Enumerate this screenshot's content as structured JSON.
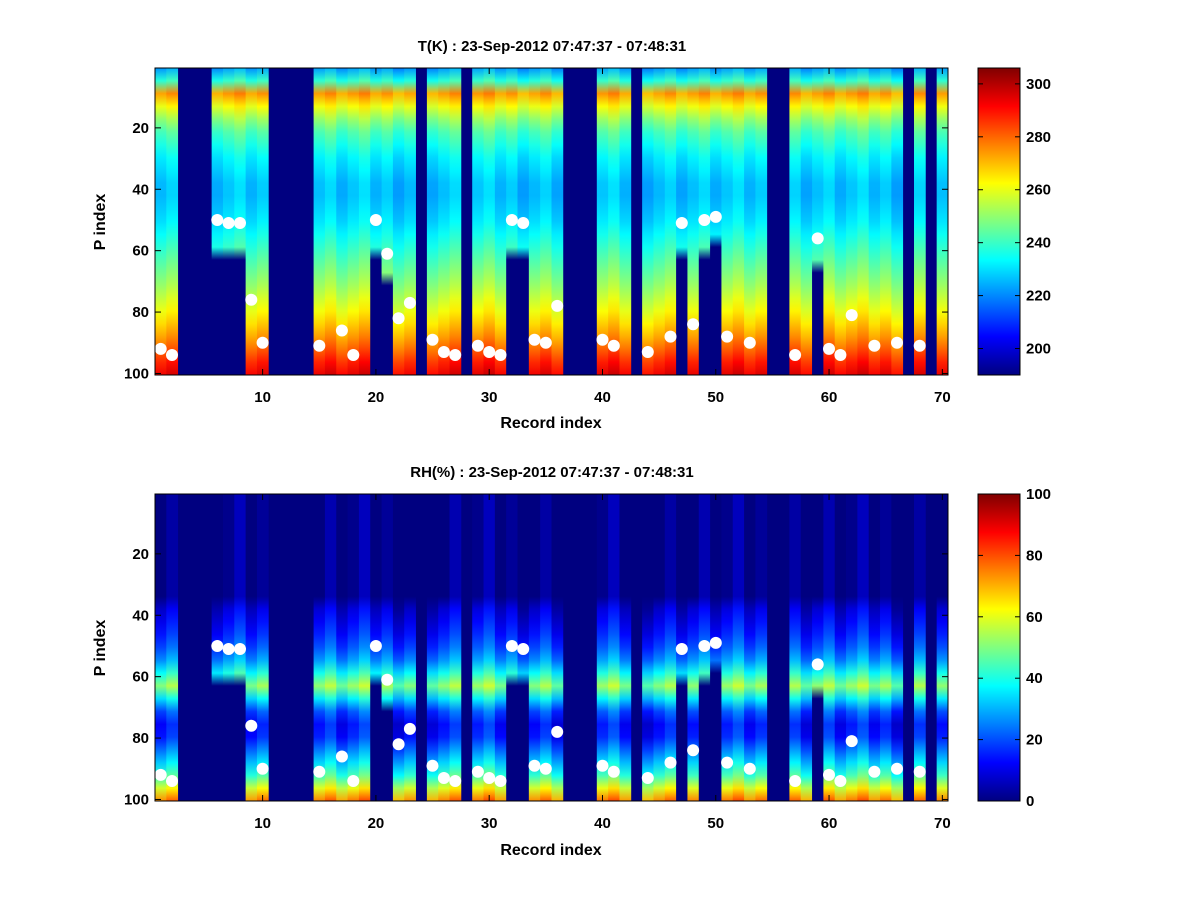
{
  "chart_data": [
    {
      "type": "heatmap",
      "title": "T(K) : 23-Sep-2012 07:47:37 - 07:48:31",
      "xlabel": "Record index",
      "ylabel": "P index",
      "xlim": [
        0.5,
        70.5
      ],
      "ylim": [
        0.5,
        100.5
      ],
      "y_reversed": true,
      "xticks": [
        10,
        20,
        30,
        40,
        50,
        60,
        70
      ],
      "yticks": [
        20,
        40,
        60,
        80,
        100
      ],
      "colormap": "jet",
      "clim": [
        190,
        306
      ],
      "colorbar_ticks": [
        200,
        220,
        240,
        260,
        280,
        300
      ],
      "fill_value": 190,
      "base_profile": [
        [
          1,
          222
        ],
        [
          6,
          242
        ],
        [
          8,
          270
        ],
        [
          10,
          276
        ],
        [
          13,
          262
        ],
        [
          20,
          244
        ],
        [
          30,
          232
        ],
        [
          40,
          225
        ],
        [
          50,
          230
        ],
        [
          60,
          240
        ],
        [
          70,
          250
        ],
        [
          80,
          262
        ],
        [
          90,
          277
        ],
        [
          96,
          288
        ],
        [
          100,
          294
        ]
      ],
      "empty_records": [
        3,
        4,
        5,
        11,
        12,
        13,
        14,
        24,
        28,
        37,
        38,
        39,
        43,
        55,
        56,
        67,
        69
      ],
      "markers": [
        {
          "record": 1,
          "p": 92
        },
        {
          "record": 2,
          "p": 94
        },
        {
          "record": 6,
          "p": 50
        },
        {
          "record": 7,
          "p": 51
        },
        {
          "record": 8,
          "p": 51
        },
        {
          "record": 9,
          "p": 76
        },
        {
          "record": 10,
          "p": 90
        },
        {
          "record": 15,
          "p": 91
        },
        {
          "record": 17,
          "p": 86
        },
        {
          "record": 18,
          "p": 94
        },
        {
          "record": 20,
          "p": 50
        },
        {
          "record": 21,
          "p": 61
        },
        {
          "record": 22,
          "p": 82
        },
        {
          "record": 23,
          "p": 77
        },
        {
          "record": 25,
          "p": 89
        },
        {
          "record": 26,
          "p": 93
        },
        {
          "record": 27,
          "p": 94
        },
        {
          "record": 29,
          "p": 91
        },
        {
          "record": 30,
          "p": 93
        },
        {
          "record": 31,
          "p": 94
        },
        {
          "record": 32,
          "p": 50
        },
        {
          "record": 33,
          "p": 51
        },
        {
          "record": 34,
          "p": 89
        },
        {
          "record": 35,
          "p": 90
        },
        {
          "record": 36,
          "p": 78
        },
        {
          "record": 40,
          "p": 89
        },
        {
          "record": 41,
          "p": 91
        },
        {
          "record": 44,
          "p": 93
        },
        {
          "record": 46,
          "p": 88
        },
        {
          "record": 47,
          "p": 51
        },
        {
          "record": 48,
          "p": 84
        },
        {
          "record": 49,
          "p": 50
        },
        {
          "record": 50,
          "p": 49
        },
        {
          "record": 51,
          "p": 88
        },
        {
          "record": 53,
          "p": 90
        },
        {
          "record": 57,
          "p": 94
        },
        {
          "record": 59,
          "p": 56
        },
        {
          "record": 60,
          "p": 92
        },
        {
          "record": 61,
          "p": 94
        },
        {
          "record": 62,
          "p": 81
        },
        {
          "record": 64,
          "p": 91
        },
        {
          "record": 66,
          "p": 90
        },
        {
          "record": 68,
          "p": 91
        }
      ]
    },
    {
      "type": "heatmap",
      "title": "RH(%) : 23-Sep-2012 07:47:37 - 07:48:31",
      "xlabel": "Record index",
      "ylabel": "P index",
      "xlim": [
        0.5,
        70.5
      ],
      "ylim": [
        0.5,
        100.5
      ],
      "y_reversed": true,
      "xticks": [
        10,
        20,
        30,
        40,
        50,
        60,
        70
      ],
      "yticks": [
        20,
        40,
        60,
        80,
        100
      ],
      "colormap": "jet",
      "clim": [
        0,
        100
      ],
      "colorbar_ticks": [
        0,
        20,
        40,
        60,
        80,
        100
      ],
      "fill_value": 0,
      "base_profile": [
        [
          1,
          0
        ],
        [
          34,
          0
        ],
        [
          38,
          8
        ],
        [
          46,
          15
        ],
        [
          52,
          22
        ],
        [
          57,
          32
        ],
        [
          61,
          48
        ],
        [
          63,
          52
        ],
        [
          66,
          40
        ],
        [
          70,
          22
        ],
        [
          76,
          12
        ],
        [
          80,
          16
        ],
        [
          86,
          30
        ],
        [
          90,
          38
        ],
        [
          94,
          50
        ],
        [
          97,
          65
        ],
        [
          100,
          75
        ]
      ],
      "empty_records": [
        3,
        4,
        5,
        11,
        12,
        13,
        14,
        24,
        28,
        37,
        38,
        39,
        43,
        55,
        56,
        67,
        69
      ],
      "markers": [
        {
          "record": 1,
          "p": 92
        },
        {
          "record": 2,
          "p": 94
        },
        {
          "record": 6,
          "p": 50
        },
        {
          "record": 7,
          "p": 51
        },
        {
          "record": 8,
          "p": 51
        },
        {
          "record": 9,
          "p": 76
        },
        {
          "record": 10,
          "p": 90
        },
        {
          "record": 15,
          "p": 91
        },
        {
          "record": 17,
          "p": 86
        },
        {
          "record": 18,
          "p": 94
        },
        {
          "record": 20,
          "p": 50
        },
        {
          "record": 21,
          "p": 61
        },
        {
          "record": 22,
          "p": 82
        },
        {
          "record": 23,
          "p": 77
        },
        {
          "record": 25,
          "p": 89
        },
        {
          "record": 26,
          "p": 93
        },
        {
          "record": 27,
          "p": 94
        },
        {
          "record": 29,
          "p": 91
        },
        {
          "record": 30,
          "p": 93
        },
        {
          "record": 31,
          "p": 94
        },
        {
          "record": 32,
          "p": 50
        },
        {
          "record": 33,
          "p": 51
        },
        {
          "record": 34,
          "p": 89
        },
        {
          "record": 35,
          "p": 90
        },
        {
          "record": 36,
          "p": 78
        },
        {
          "record": 40,
          "p": 89
        },
        {
          "record": 41,
          "p": 91
        },
        {
          "record": 44,
          "p": 93
        },
        {
          "record": 46,
          "p": 88
        },
        {
          "record": 47,
          "p": 51
        },
        {
          "record": 48,
          "p": 84
        },
        {
          "record": 49,
          "p": 50
        },
        {
          "record": 50,
          "p": 49
        },
        {
          "record": 51,
          "p": 88
        },
        {
          "record": 53,
          "p": 90
        },
        {
          "record": 57,
          "p": 94
        },
        {
          "record": 59,
          "p": 56
        },
        {
          "record": 60,
          "p": 92
        },
        {
          "record": 61,
          "p": 94
        },
        {
          "record": 62,
          "p": 81
        },
        {
          "record": 64,
          "p": 91
        },
        {
          "record": 66,
          "p": 90
        },
        {
          "record": 68,
          "p": 91
        }
      ]
    }
  ]
}
